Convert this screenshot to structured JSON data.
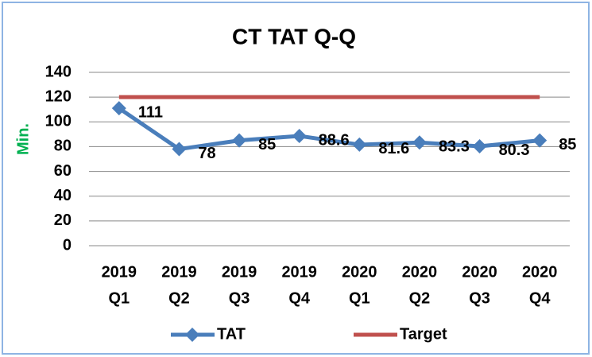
{
  "chart_data": {
    "type": "line",
    "title": "CT TAT Q-Q",
    "y_label": "Min.",
    "categories": [
      [
        "2019",
        "Q1"
      ],
      [
        "2019",
        "Q2"
      ],
      [
        "2019",
        "Q3"
      ],
      [
        "2019",
        "Q4"
      ],
      [
        "2020",
        "Q1"
      ],
      [
        "2020",
        "Q2"
      ],
      [
        "2020",
        "Q3"
      ],
      [
        "2020",
        "Q4"
      ]
    ],
    "series": [
      {
        "name": "TAT",
        "color": "#4a7ebb",
        "values": [
          111,
          78,
          85,
          88.6,
          81.6,
          83.3,
          80.3,
          85
        ],
        "marker": "diamond",
        "data_labels": true
      },
      {
        "name": "Target",
        "color": "#c0504d",
        "values": [
          120,
          120,
          120,
          120,
          120,
          120,
          120,
          120
        ]
      }
    ],
    "ylim": [
      0,
      140
    ],
    "yticks": [
      0,
      20,
      40,
      60,
      80,
      100,
      120,
      140
    ],
    "grid": true,
    "legend": "bottom"
  }
}
